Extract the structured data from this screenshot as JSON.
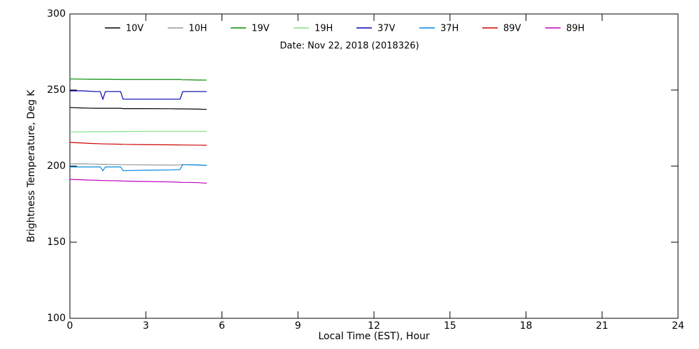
{
  "chart_data": {
    "type": "line",
    "subtitle": "Date: Nov 22, 2018 (2018326)",
    "xlabel": "Local Time (EST), Hour",
    "ylabel": "Brightness Temperature, Deg K",
    "x": [
      0,
      0.5,
      1,
      1.2,
      1.3,
      1.4,
      2,
      2.1,
      3,
      4,
      4.35,
      4.45,
      5,
      5.4
    ],
    "xlim": [
      0,
      24
    ],
    "xticks": [
      0,
      3,
      6,
      9,
      12,
      15,
      18,
      21,
      24
    ],
    "ylim": [
      100,
      300
    ],
    "yticks": [
      100,
      150,
      200,
      250,
      300
    ],
    "legend": "top",
    "series": [
      {
        "name": "10V",
        "color": "#000000",
        "values": [
          238.5,
          238.2,
          238,
          238,
          238,
          238,
          238,
          237.8,
          237.8,
          237.7,
          237.6,
          237.6,
          237.5,
          237.3
        ]
      },
      {
        "name": "10H",
        "color": "#999999",
        "values": [
          201.5,
          201.5,
          201.3,
          201.2,
          201.2,
          201.2,
          201,
          201,
          200.8,
          200.7,
          200.8,
          201,
          200.7,
          200.5
        ]
      },
      {
        "name": "19V",
        "color": "#008a00",
        "values": [
          257.3,
          257.2,
          257.1,
          257.1,
          257.1,
          257.1,
          257,
          257,
          257,
          257,
          257,
          256.8,
          256.6,
          256.5
        ]
      },
      {
        "name": "19H",
        "color": "#80e080",
        "values": [
          222.5,
          222.5,
          222.6,
          222.6,
          222.6,
          222.6,
          222.7,
          222.7,
          222.8,
          222.8,
          222.8,
          222.8,
          222.8,
          222.8
        ]
      },
      {
        "name": "37V",
        "color": "#0000b0",
        "values": [
          249.5,
          249.5,
          249,
          249,
          244,
          249,
          249,
          244,
          244,
          244,
          244,
          249,
          249,
          249
        ]
      },
      {
        "name": "37H",
        "color": "#0088dd",
        "values": [
          199.5,
          199.5,
          199.5,
          199.5,
          197,
          199.5,
          199.5,
          197,
          197.3,
          197.5,
          197.8,
          201,
          200.8,
          200.5
        ]
      },
      {
        "name": "89V",
        "color": "#d00000",
        "values": [
          215.6,
          215.2,
          214.8,
          214.7,
          214.6,
          214.6,
          214.4,
          214.3,
          214.1,
          214,
          213.9,
          213.9,
          213.8,
          213.7
        ]
      },
      {
        "name": "89H",
        "color": "#c000c0",
        "values": [
          191.3,
          191,
          190.7,
          190.6,
          190.5,
          190.5,
          190.3,
          190.2,
          189.9,
          189.6,
          189.4,
          189.3,
          189.2,
          188.8
        ]
      }
    ]
  }
}
